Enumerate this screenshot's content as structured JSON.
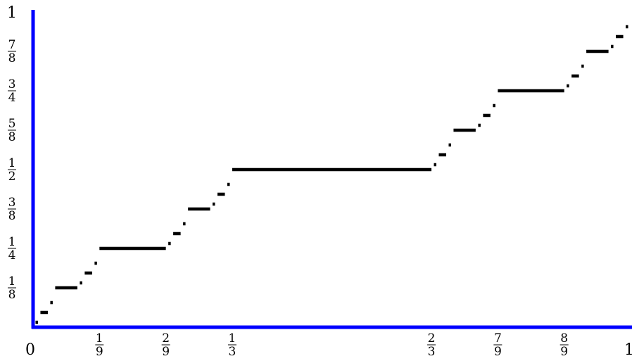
{
  "chart_data": {
    "type": "line",
    "title": "",
    "xlabel": "",
    "ylabel": "",
    "xlim": [
      0,
      1
    ],
    "ylim": [
      0,
      1
    ],
    "grid": false,
    "colors": {
      "axes": "#0000ff",
      "steps": "#000000"
    },
    "x_ticks": [
      {
        "value": 0,
        "num": "0",
        "den": ""
      },
      {
        "value": 0.1111,
        "num": "1",
        "den": "9"
      },
      {
        "value": 0.2222,
        "num": "2",
        "den": "9"
      },
      {
        "value": 0.3333,
        "num": "1",
        "den": "3"
      },
      {
        "value": 0.6667,
        "num": "2",
        "den": "3"
      },
      {
        "value": 0.7778,
        "num": "7",
        "den": "9"
      },
      {
        "value": 0.8889,
        "num": "8",
        "den": "9"
      },
      {
        "value": 1,
        "num": "1",
        "den": ""
      }
    ],
    "y_ticks": [
      {
        "value": 0.125,
        "num": "1",
        "den": "8"
      },
      {
        "value": 0.25,
        "num": "1",
        "den": "4"
      },
      {
        "value": 0.375,
        "num": "3",
        "den": "8"
      },
      {
        "value": 0.5,
        "num": "1",
        "den": "2"
      },
      {
        "value": 0.625,
        "num": "5",
        "den": "8"
      },
      {
        "value": 0.75,
        "num": "3",
        "den": "4"
      },
      {
        "value": 0.875,
        "num": "7",
        "den": "8"
      },
      {
        "value": 1,
        "num": "1",
        "den": ""
      }
    ],
    "series": [
      {
        "segments": [
          {
            "x0": 0.0041,
            "x1": 0.0082,
            "y": 0.0156
          },
          {
            "x0": 0.0123,
            "x1": 0.0247,
            "y": 0.0469
          },
          {
            "x0": 0.0288,
            "x1": 0.0329,
            "y": 0.0781
          },
          {
            "x0": 0.037,
            "x1": 0.0741,
            "y": 0.125
          },
          {
            "x0": 0.0782,
            "x1": 0.0823,
            "y": 0.1406
          },
          {
            "x0": 0.0864,
            "x1": 0.0988,
            "y": 0.1719
          },
          {
            "x0": 0.1029,
            "x1": 0.107,
            "y": 0.2031
          },
          {
            "x0": 0.1111,
            "x1": 0.2222,
            "y": 0.25
          },
          {
            "x0": 0.2263,
            "x1": 0.2304,
            "y": 0.2656
          },
          {
            "x0": 0.2345,
            "x1": 0.2469,
            "y": 0.2969
          },
          {
            "x0": 0.251,
            "x1": 0.2551,
            "y": 0.3281
          },
          {
            "x0": 0.2593,
            "x1": 0.2963,
            "y": 0.375
          },
          {
            "x0": 0.3004,
            "x1": 0.3045,
            "y": 0.3906
          },
          {
            "x0": 0.3086,
            "x1": 0.321,
            "y": 0.4219
          },
          {
            "x0": 0.3251,
            "x1": 0.3292,
            "y": 0.4531
          },
          {
            "x0": 0.3333,
            "x1": 0.6667,
            "y": 0.5
          },
          {
            "x0": 0.6708,
            "x1": 0.6749,
            "y": 0.5156
          },
          {
            "x0": 0.679,
            "x1": 0.6914,
            "y": 0.5469
          },
          {
            "x0": 0.6955,
            "x1": 0.6996,
            "y": 0.5781
          },
          {
            "x0": 0.7037,
            "x1": 0.7407,
            "y": 0.625
          },
          {
            "x0": 0.7449,
            "x1": 0.749,
            "y": 0.6406
          },
          {
            "x0": 0.7531,
            "x1": 0.7654,
            "y": 0.6719
          },
          {
            "x0": 0.7695,
            "x1": 0.7737,
            "y": 0.7031
          },
          {
            "x0": 0.7778,
            "x1": 0.8889,
            "y": 0.75
          },
          {
            "x0": 0.893,
            "x1": 0.8971,
            "y": 0.7656
          },
          {
            "x0": 0.9012,
            "x1": 0.9136,
            "y": 0.7969
          },
          {
            "x0": 0.9177,
            "x1": 0.9218,
            "y": 0.8281
          },
          {
            "x0": 0.9259,
            "x1": 0.963,
            "y": 0.875
          },
          {
            "x0": 0.9671,
            "x1": 0.9712,
            "y": 0.8906
          },
          {
            "x0": 0.9753,
            "x1": 0.9877,
            "y": 0.9219
          },
          {
            "x0": 0.9918,
            "x1": 0.9959,
            "y": 0.9531
          }
        ]
      }
    ]
  }
}
